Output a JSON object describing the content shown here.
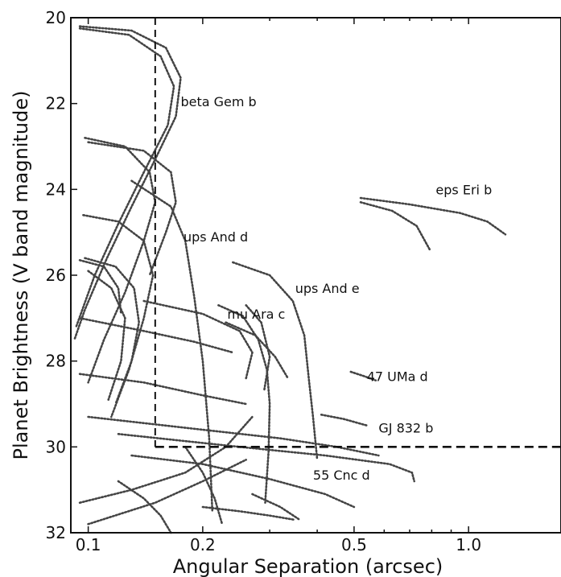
{
  "chart_data": {
    "type": "line",
    "title": "",
    "xlabel": "Angular Separation (arcsec)",
    "ylabel": "Planet Brightness (V band magnitude)",
    "x_scale": "log",
    "y_inverted": true,
    "xlim": [
      0.09,
      1.75
    ],
    "ylim": [
      32,
      20
    ],
    "x_ticks": [
      0.1,
      0.2,
      0.5,
      1.0
    ],
    "x_tick_labels": [
      "0.1",
      "0.2",
      "0.5",
      "1.0"
    ],
    "y_ticks": [
      20,
      22,
      24,
      26,
      28,
      30,
      32
    ],
    "y_tick_labels": [
      "20",
      "22",
      "24",
      "26",
      "28",
      "30",
      "32"
    ],
    "grid": false,
    "line_style": "dotted",
    "thresholds": {
      "min_separation": 0.15,
      "limiting_magnitude": 30,
      "style": "dashed"
    },
    "annotations": [
      {
        "text": "beta Gem b",
        "x": 0.175,
        "y": 21.95
      },
      {
        "text": "eps Eri b",
        "x": 0.82,
        "y": 24.0
      },
      {
        "text": "ups And d",
        "x": 0.178,
        "y": 25.1
      },
      {
        "text": "ups And e",
        "x": 0.35,
        "y": 26.3
      },
      {
        "text": "mu Ara c",
        "x": 0.232,
        "y": 26.9
      },
      {
        "text": "47 UMa d",
        "x": 0.54,
        "y": 28.35
      },
      {
        "text": "GJ 832 b",
        "x": 0.58,
        "y": 29.55
      },
      {
        "text": "55 Cnc d",
        "x": 0.39,
        "y": 30.65
      }
    ],
    "series": [
      {
        "values": [
          [
            0.095,
            20.2
          ],
          [
            0.13,
            20.3
          ],
          [
            0.16,
            20.7
          ],
          [
            0.175,
            21.4
          ],
          [
            0.17,
            22.3
          ],
          [
            0.15,
            23.3
          ],
          [
            0.13,
            24.4
          ],
          [
            0.112,
            25.6
          ],
          [
            0.098,
            26.8
          ],
          [
            0.092,
            27.5
          ]
        ]
      },
      {
        "values": [
          [
            0.095,
            20.25
          ],
          [
            0.128,
            20.4
          ],
          [
            0.155,
            20.9
          ],
          [
            0.168,
            21.6
          ],
          [
            0.162,
            22.5
          ],
          [
            0.14,
            23.6
          ],
          [
            0.12,
            24.8
          ],
          [
            0.104,
            26.0
          ],
          [
            0.093,
            27.2
          ]
        ]
      },
      {
        "values": [
          [
            0.098,
            22.8
          ],
          [
            0.125,
            23.0
          ],
          [
            0.145,
            23.6
          ],
          [
            0.15,
            24.3
          ],
          [
            0.14,
            25.2
          ],
          [
            0.125,
            26.4
          ],
          [
            0.11,
            27.5
          ],
          [
            0.1,
            28.5
          ]
        ]
      },
      {
        "values": [
          [
            0.1,
            22.9
          ],
          [
            0.14,
            23.1
          ],
          [
            0.165,
            23.6
          ],
          [
            0.17,
            24.3
          ],
          [
            0.16,
            25.0
          ],
          [
            0.145,
            26.0
          ]
        ]
      },
      {
        "values": [
          [
            0.097,
            24.6
          ],
          [
            0.12,
            24.75
          ],
          [
            0.14,
            25.2
          ],
          [
            0.148,
            26.0
          ],
          [
            0.14,
            27.0
          ],
          [
            0.128,
            28.2
          ],
          [
            0.115,
            29.3
          ]
        ]
      },
      {
        "values": [
          [
            0.098,
            25.6
          ],
          [
            0.118,
            25.8
          ],
          [
            0.132,
            26.3
          ],
          [
            0.136,
            27.1
          ],
          [
            0.13,
            28.0
          ],
          [
            0.118,
            29.0
          ]
        ]
      },
      {
        "values": [
          [
            0.095,
            25.65
          ],
          [
            0.11,
            25.8
          ],
          [
            0.12,
            26.3
          ],
          [
            0.122,
            26.9
          ]
        ]
      },
      {
        "values": [
          [
            0.1,
            25.9
          ],
          [
            0.115,
            26.3
          ],
          [
            0.125,
            27.0
          ],
          [
            0.122,
            28.0
          ],
          [
            0.113,
            28.9
          ]
        ]
      },
      {
        "values": [
          [
            0.13,
            23.8
          ],
          [
            0.165,
            24.4
          ],
          [
            0.18,
            25.2
          ],
          [
            0.19,
            26.5
          ],
          [
            0.2,
            28.0
          ],
          [
            0.208,
            29.8
          ],
          [
            0.212,
            31.5
          ]
        ]
      },
      {
        "values": [
          [
            0.24,
            25.7
          ],
          [
            0.3,
            26.0
          ],
          [
            0.345,
            26.6
          ],
          [
            0.37,
            27.4
          ],
          [
            0.38,
            28.4
          ],
          [
            0.39,
            29.3
          ],
          [
            0.4,
            30.3
          ]
        ]
      },
      {
        "values": [
          [
            0.22,
            26.7
          ],
          [
            0.255,
            26.95
          ],
          [
            0.28,
            27.5
          ],
          [
            0.295,
            28.2
          ],
          [
            0.3,
            29.0
          ],
          [
            0.298,
            30.1
          ],
          [
            0.292,
            31.3
          ]
        ]
      },
      {
        "values": [
          [
            0.26,
            26.7
          ],
          [
            0.285,
            27.1
          ],
          [
            0.3,
            27.9
          ],
          [
            0.29,
            28.7
          ]
        ]
      },
      {
        "values": [
          [
            0.23,
            27.1
          ],
          [
            0.275,
            27.4
          ],
          [
            0.31,
            27.9
          ],
          [
            0.335,
            28.4
          ]
        ]
      },
      {
        "values": [
          [
            0.52,
            24.2
          ],
          [
            0.7,
            24.35
          ],
          [
            0.95,
            24.55
          ],
          [
            1.12,
            24.75
          ],
          [
            1.25,
            25.05
          ]
        ]
      },
      {
        "values": [
          [
            0.52,
            24.3
          ],
          [
            0.63,
            24.5
          ],
          [
            0.73,
            24.85
          ],
          [
            0.79,
            25.4
          ]
        ]
      },
      {
        "values": [
          [
            0.49,
            28.25
          ],
          [
            0.53,
            28.35
          ],
          [
            0.57,
            28.45
          ]
        ]
      },
      {
        "values": [
          [
            0.41,
            29.25
          ],
          [
            0.47,
            29.35
          ],
          [
            0.54,
            29.5
          ]
        ]
      },
      {
        "values": [
          [
            0.1,
            29.3
          ],
          [
            0.2,
            29.6
          ],
          [
            0.32,
            29.8
          ],
          [
            0.45,
            30.0
          ],
          [
            0.58,
            30.2
          ]
        ]
      },
      {
        "values": [
          [
            0.12,
            29.7
          ],
          [
            0.25,
            30.0
          ],
          [
            0.42,
            30.2
          ],
          [
            0.62,
            30.4
          ],
          [
            0.71,
            30.6
          ],
          [
            0.72,
            30.8
          ]
        ]
      },
      {
        "values": [
          [
            0.13,
            30.2
          ],
          [
            0.2,
            30.4
          ],
          [
            0.3,
            30.75
          ],
          [
            0.42,
            31.1
          ],
          [
            0.5,
            31.4
          ]
        ]
      },
      {
        "values": [
          [
            0.095,
            31.3
          ],
          [
            0.13,
            31.0
          ],
          [
            0.18,
            30.6
          ],
          [
            0.23,
            30.0
          ],
          [
            0.27,
            29.3
          ]
        ]
      },
      {
        "values": [
          [
            0.1,
            31.8
          ],
          [
            0.15,
            31.3
          ],
          [
            0.2,
            30.8
          ],
          [
            0.26,
            30.3
          ]
        ]
      },
      {
        "values": [
          [
            0.095,
            28.3
          ],
          [
            0.14,
            28.5
          ],
          [
            0.2,
            28.8
          ],
          [
            0.26,
            29.0
          ]
        ]
      },
      {
        "values": [
          [
            0.095,
            27.0
          ],
          [
            0.14,
            27.3
          ],
          [
            0.19,
            27.55
          ],
          [
            0.24,
            27.8
          ]
        ]
      },
      {
        "values": [
          [
            0.14,
            26.6
          ],
          [
            0.2,
            26.9
          ],
          [
            0.25,
            27.3
          ],
          [
            0.27,
            27.8
          ],
          [
            0.26,
            28.4
          ]
        ]
      },
      {
        "values": [
          [
            0.2,
            31.4
          ],
          [
            0.25,
            31.5
          ],
          [
            0.3,
            31.6
          ],
          [
            0.35,
            31.7
          ]
        ]
      },
      {
        "values": [
          [
            0.27,
            31.1
          ],
          [
            0.32,
            31.4
          ],
          [
            0.36,
            31.7
          ]
        ]
      },
      {
        "values": [
          [
            0.12,
            30.8
          ],
          [
            0.14,
            31.2
          ],
          [
            0.155,
            31.6
          ],
          [
            0.165,
            32.0
          ]
        ]
      },
      {
        "values": [
          [
            0.18,
            30.0
          ],
          [
            0.2,
            30.6
          ],
          [
            0.215,
            31.2
          ],
          [
            0.225,
            31.8
          ]
        ]
      }
    ]
  }
}
